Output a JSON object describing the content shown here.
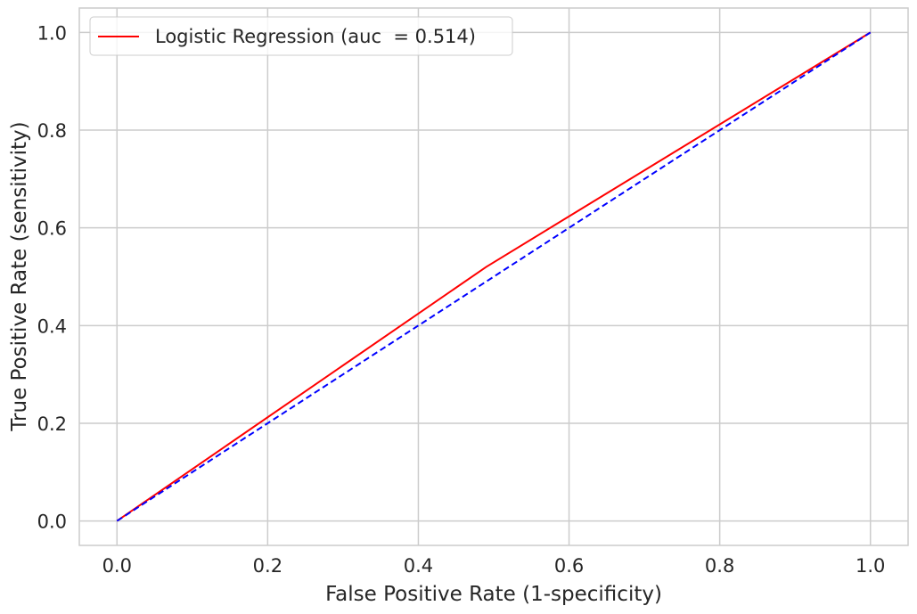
{
  "chart_data": {
    "type": "line",
    "xlabel": "False Positive Rate (1-specificity)",
    "ylabel": "True Positive Rate (sensitivity)",
    "xlim": [
      -0.05,
      1.05
    ],
    "ylim": [
      -0.05,
      1.05
    ],
    "xticks": [
      0.0,
      0.2,
      0.4,
      0.6,
      0.8,
      1.0
    ],
    "yticks": [
      0.0,
      0.2,
      0.4,
      0.6,
      0.8,
      1.0
    ],
    "xtick_labels": [
      "0.0",
      "0.2",
      "0.4",
      "0.6",
      "0.8",
      "1.0"
    ],
    "ytick_labels": [
      "0.0",
      "0.2",
      "0.4",
      "0.6",
      "0.8",
      "1.0"
    ],
    "grid": true,
    "legend_position": "top-left",
    "series": [
      {
        "name": "Logistic Regression (auc  = 0.514)",
        "color": "#ff0000",
        "style": "solid",
        "x": [
          0.0,
          0.49,
          1.0
        ],
        "y": [
          0.0,
          0.52,
          1.0
        ]
      },
      {
        "color": "#0000ff",
        "style": "dashed",
        "x": [
          0.0,
          1.0
        ],
        "y": [
          0.0,
          1.0
        ]
      }
    ]
  }
}
